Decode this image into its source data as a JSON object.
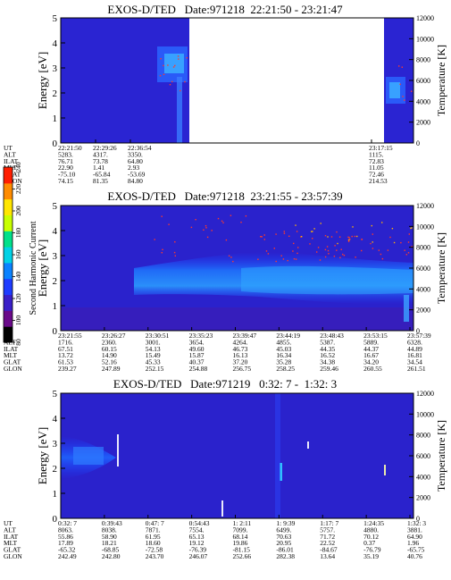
{
  "panels": [
    {
      "title": "EXOS-D/TED   Date:971218  22:21:50 - 23:21:47",
      "ylabel": "Energy [eV]",
      "y2label": "Temperature [K]",
      "ylim": [
        0,
        5
      ],
      "y2lim": [
        0,
        12000
      ],
      "yticks": [
        "0",
        "1",
        "2",
        "3",
        "4",
        "5"
      ],
      "y2ticks": [
        "0",
        "2000",
        "4000",
        "6000",
        "8000",
        "10000",
        "12000"
      ],
      "orbit_rows": [
        "UT",
        "ALT",
        "ILAT",
        "MLT",
        "GLAT",
        "GLON"
      ],
      "orbit_columns": [
        [
          "22:21:50",
          "5283.",
          "76.71",
          "22.90",
          "-75.10",
          "74.15"
        ],
        [
          "22:29:26",
          "4317.",
          "73.78",
          "1.41",
          "-65.84",
          "81.35"
        ],
        [
          "22:36:54",
          "3350.",
          "64.80",
          "2.93",
          "-53.69",
          "84.80"
        ],
        [
          "23:17:15",
          "1115.",
          "72.83",
          "11.05",
          "72.46",
          "214.53"
        ]
      ]
    },
    {
      "title": "EXOS-D/TED   Date:971218  23:21:55 - 23:57:39",
      "ylabel": "Energy [eV]",
      "y2label": "Temperature [K]",
      "ylim": [
        0,
        5
      ],
      "y2lim": [
        0,
        12000
      ],
      "yticks": [
        "0",
        "1",
        "2",
        "3",
        "4",
        "5"
      ],
      "y2ticks": [
        "0",
        "2000",
        "4000",
        "6000",
        "8000",
        "10000",
        "12000"
      ],
      "orbit_rows": [
        "UT",
        "ALT",
        "ILAT",
        "MLT",
        "GLAT",
        "GLON"
      ],
      "orbit_columns": [
        [
          "23:21:55",
          "1716.",
          "67.51",
          "13.72",
          "61.53",
          "239.27"
        ],
        [
          "23:26:27",
          "2360.",
          "60.15",
          "14.90",
          "52.16",
          "247.89"
        ],
        [
          "23:30:51",
          "3001.",
          "54.13",
          "15.49",
          "45.33",
          "252.15"
        ],
        [
          "23:35:23",
          "3654.",
          "49.60",
          "15.87",
          "40.37",
          "254.88"
        ],
        [
          "23:39:47",
          "4264.",
          "46.73",
          "16.13",
          "37.20",
          "256.75"
        ],
        [
          "23:44:19",
          "4855.",
          "45.03",
          "16.34",
          "35.28",
          "258.25"
        ],
        [
          "23:48:43",
          "5387.",
          "44.35",
          "16.52",
          "34.38",
          "259.46"
        ],
        [
          "23:53:15",
          "5889.",
          "44.37",
          "16.67",
          "34.20",
          "260.55"
        ],
        [
          "23:57:39",
          "6328.",
          "44.89",
          "16.81",
          "34.54",
          "261.51"
        ]
      ]
    },
    {
      "title": "EXOS-D/TED   Date:971219   0:32: 7 -  1:32: 3",
      "ylabel": "Energy [eV]",
      "y2label": "Temperature [K]",
      "ylim": [
        0,
        5
      ],
      "y2lim": [
        0,
        12000
      ],
      "yticks": [
        "0",
        "1",
        "2",
        "3",
        "4",
        "5"
      ],
      "y2ticks": [
        "0",
        "2000",
        "4000",
        "6000",
        "8000",
        "10000",
        "12000"
      ],
      "orbit_rows": [
        "UT",
        "ALT",
        "ILAT",
        "MLT",
        "GLAT",
        "GLON"
      ],
      "orbit_columns": [
        [
          "0:32: 7",
          "8063.",
          "55.86",
          "17.89",
          "-65.32",
          "242.49"
        ],
        [
          "0:39:43",
          "8038.",
          "58.90",
          "18.21",
          "-68.85",
          "242.80"
        ],
        [
          "0:47: 7",
          "7871.",
          "61.95",
          "18.60",
          "-72.58",
          "243.70"
        ],
        [
          "0:54:43",
          "7554.",
          "65.13",
          "19.12",
          "-76.39",
          "246.07"
        ],
        [
          "1: 2:11",
          "7099.",
          "68.14",
          "19.86",
          "-81.15",
          "252.66"
        ],
        [
          "1: 9:39",
          "6499.",
          "70.63",
          "20.95",
          "-86.01",
          "282.38"
        ],
        [
          "1:17: 7",
          "5757.",
          "71.72",
          "22.52",
          "-84.67",
          "13.64"
        ],
        [
          "1:24:35",
          "4880.",
          "70.12",
          "0.37",
          "-76.79",
          "35.19"
        ],
        [
          "1:32: 3",
          "3881.",
          "64.90",
          "1.96",
          "-65.75",
          "40.76"
        ]
      ]
    }
  ],
  "colorbar": {
    "label": "Second Harmonic Current",
    "ticks": [
      "80",
      "100",
      "120",
      "140",
      "160",
      "180",
      "200",
      "220",
      "240"
    ],
    "colors": [
      "#000000",
      "#6a0a8a",
      "#3a1fc8",
      "#1e3cff",
      "#0a82ff",
      "#00d2e6",
      "#00e08a",
      "#c8ff00",
      "#ffe600",
      "#ff8c00",
      "#ff1e00"
    ]
  },
  "chart_data": [
    {
      "type": "heatmap",
      "title": "EXOS-D/TED   Date:971218  22:21:50 - 23:21:47",
      "xlabel": "UT",
      "ylabel": "Energy [eV]",
      "y2label": "Temperature [K]",
      "ylim": [
        0,
        5
      ],
      "y2lim": [
        0,
        12000
      ],
      "x_ticks": [
        "22:21:50",
        "22:29:26",
        "22:36:54",
        "23:17:15"
      ],
      "data_gap": [
        "22:38",
        "23:16"
      ],
      "background_level": 120,
      "colorbar": {
        "label": "Second Harmonic Current",
        "range": [
          80,
          240
        ]
      }
    },
    {
      "type": "heatmap",
      "title": "EXOS-D/TED   Date:971218  23:21:55 - 23:57:39",
      "xlabel": "UT",
      "ylabel": "Energy [eV]",
      "y2label": "Temperature [K]",
      "ylim": [
        0,
        5
      ],
      "y2lim": [
        0,
        12000
      ],
      "x_ticks": [
        "23:21:55",
        "23:26:27",
        "23:30:51",
        "23:35:23",
        "23:39:47",
        "23:44:19",
        "23:48:43",
        "23:53:15",
        "23:57:39"
      ],
      "background_level": 120,
      "colorbar": {
        "label": "Second Harmonic Current",
        "range": [
          80,
          240
        ]
      }
    },
    {
      "type": "heatmap",
      "title": "EXOS-D/TED   Date:971219   0:32: 7 -  1:32: 3",
      "xlabel": "UT",
      "ylabel": "Energy [eV]",
      "y2label": "Temperature [K]",
      "ylim": [
        0,
        5
      ],
      "y2lim": [
        0,
        12000
      ],
      "x_ticks": [
        "0:32: 7",
        "0:39:43",
        "0:47: 7",
        "0:54:43",
        "1: 2:11",
        "1: 9:39",
        "1:17: 7",
        "1:24:35",
        "1:32: 3"
      ],
      "background_level": 120,
      "colorbar": {
        "label": "Second Harmonic Current",
        "range": [
          80,
          240
        ]
      }
    }
  ]
}
